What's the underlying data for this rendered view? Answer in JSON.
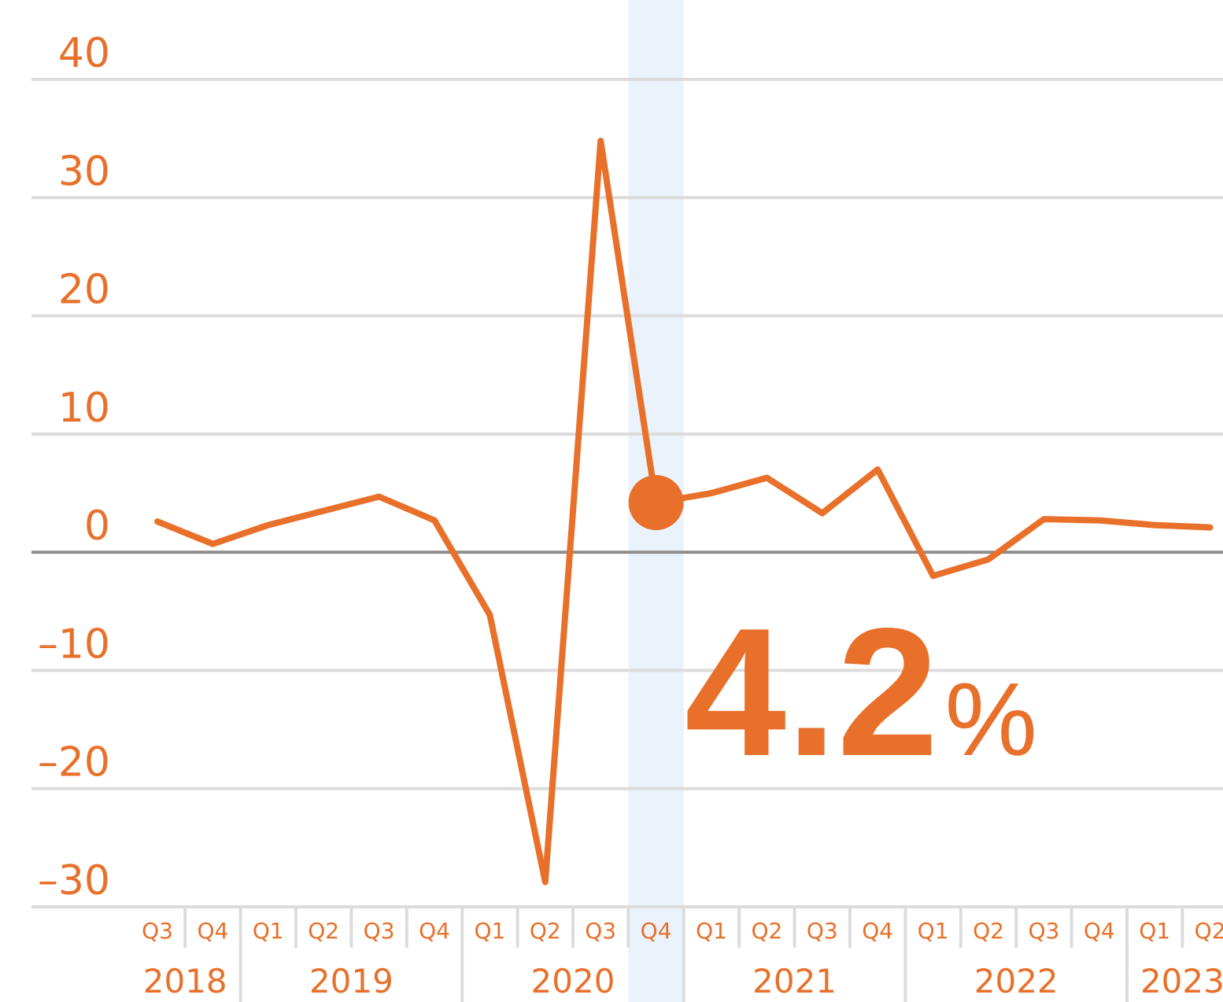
{
  "chart_data": {
    "type": "line",
    "groups": [
      {
        "name": "2018",
        "categories": [
          "Q3",
          "Q4"
        ]
      },
      {
        "name": "2019",
        "categories": [
          "Q1",
          "Q2",
          "Q3",
          "Q4"
        ]
      },
      {
        "name": "2020",
        "categories": [
          "Q1",
          "Q2",
          "Q3",
          "Q4"
        ]
      },
      {
        "name": "2021",
        "categories": [
          "Q1",
          "Q2",
          "Q3",
          "Q4"
        ]
      },
      {
        "name": "2022",
        "categories": [
          "Q1",
          "Q2",
          "Q3",
          "Q4"
        ]
      },
      {
        "name": "2023",
        "categories": [
          "Q1",
          "Q2"
        ]
      }
    ],
    "series": [
      {
        "color": "#e8702a",
        "values": [
          2.6,
          0.7,
          2.3,
          3.5,
          4.7,
          2.7,
          -5.3,
          -27.9,
          34.8,
          4.2,
          5.0,
          6.3,
          3.3,
          7.0,
          -2.0,
          -0.6,
          2.8,
          2.7,
          2.3,
          2.1
        ]
      }
    ],
    "ylim": [
      -30,
      40
    ],
    "yticks": [
      {
        "value": -30,
        "label": "–30"
      },
      {
        "value": -20,
        "label": "–20"
      },
      {
        "value": -10,
        "label": "–10"
      },
      0,
      10,
      20,
      30,
      40
    ],
    "grid": true,
    "highlight": 9,
    "annotation": {
      "value": 4.2,
      "unit": "%"
    }
  }
}
